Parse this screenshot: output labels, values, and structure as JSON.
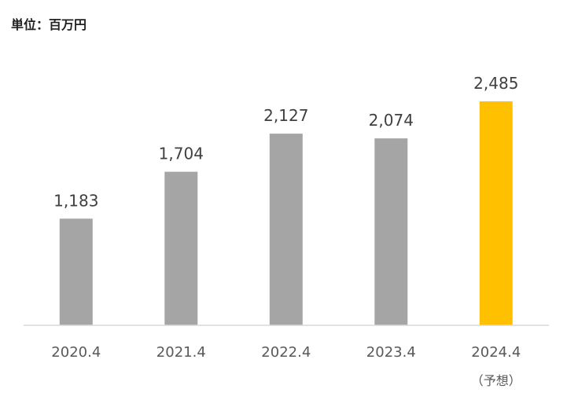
{
  "unit_label": "単位：百万円",
  "colors": {
    "actual": "#A5A5A5",
    "forecast": "#FFC000",
    "axis": "#D9D9D9"
  },
  "chart_data": {
    "type": "bar",
    "categories": [
      "2020.4",
      "2021.4",
      "2022.4",
      "2023.4",
      "2024.4"
    ],
    "category_notes": [
      "",
      "",
      "",
      "",
      "（予想）"
    ],
    "values": [
      1183,
      1704,
      2127,
      2074,
      2485
    ],
    "data_labels": [
      "1,183",
      "1,704",
      "2,127",
      "2,074",
      "2,485"
    ],
    "forecast": [
      false,
      false,
      false,
      false,
      true
    ],
    "ylim": [
      0,
      2700
    ],
    "grid": false,
    "legend": "none"
  }
}
